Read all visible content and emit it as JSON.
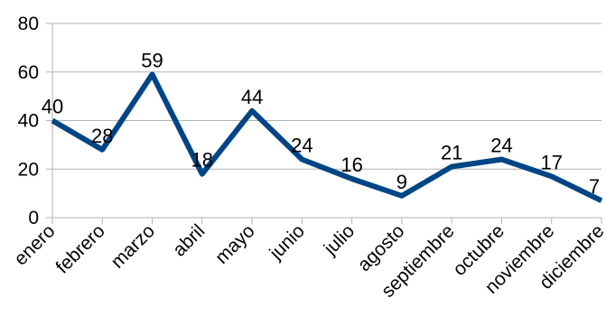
{
  "chart_data": {
    "type": "line",
    "categories": [
      "enero",
      "febrero",
      "marzo",
      "abril",
      "mayo",
      "junio",
      "julio",
      "agosto",
      "septiembre",
      "octubre",
      "noviembre",
      "diciembre"
    ],
    "series": [
      {
        "values": [
          40,
          28,
          59,
          18,
          44,
          24,
          16,
          9,
          21,
          24,
          17,
          7
        ]
      }
    ],
    "ylim": [
      0,
      80
    ],
    "yticks": [
      0,
      20,
      40,
      60,
      80
    ],
    "grid": true,
    "data_labels": true,
    "title": "",
    "xlabel": "",
    "ylabel": "",
    "colors": {
      "line": "#004586",
      "grid": "#b3b3b3",
      "axis": "#b3b3b3"
    }
  }
}
